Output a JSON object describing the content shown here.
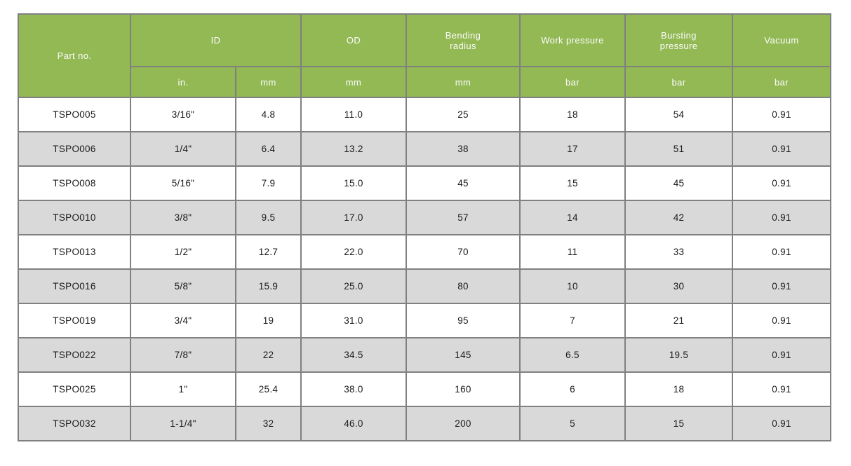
{
  "table": {
    "title": "hose-specification-table",
    "header": {
      "part_no": "Part no.",
      "id": "ID",
      "od": "OD",
      "bending_radius": "Bending\nradius",
      "work_pressure": "Work pressure",
      "bursting_pressure": "Bursting\npressure",
      "vacuum": "Vacuum",
      "units": {
        "id_in": "in.",
        "id_mm": "mm",
        "od_mm": "mm",
        "bending_mm": "mm",
        "work_bar": "bar",
        "bursting_bar": "bar",
        "vacuum_bar": "bar"
      }
    },
    "row_keys": [
      "part_no",
      "id_in",
      "id_mm",
      "od_mm",
      "bending_radius_mm",
      "work_pressure_bar",
      "bursting_pressure_bar",
      "vacuum_bar"
    ],
    "rows": [
      {
        "part_no": "TSPO005",
        "id_in": "3/16\"",
        "id_mm": "4.8",
        "od_mm": "11.0",
        "bending_radius_mm": "25",
        "work_pressure_bar": "18",
        "bursting_pressure_bar": "54",
        "vacuum_bar": "0.91"
      },
      {
        "part_no": "TSPO006",
        "id_in": "1/4\"",
        "id_mm": "6.4",
        "od_mm": "13.2",
        "bending_radius_mm": "38",
        "work_pressure_bar": "17",
        "bursting_pressure_bar": "51",
        "vacuum_bar": "0.91"
      },
      {
        "part_no": "TSPO008",
        "id_in": "5/16\"",
        "id_mm": "7.9",
        "od_mm": "15.0",
        "bending_radius_mm": "45",
        "work_pressure_bar": "15",
        "bursting_pressure_bar": "45",
        "vacuum_bar": "0.91"
      },
      {
        "part_no": "TSPO010",
        "id_in": "3/8\"",
        "id_mm": "9.5",
        "od_mm": "17.0",
        "bending_radius_mm": "57",
        "work_pressure_bar": "14",
        "bursting_pressure_bar": "42",
        "vacuum_bar": "0.91"
      },
      {
        "part_no": "TSPO013",
        "id_in": "1/2\"",
        "id_mm": "12.7",
        "od_mm": "22.0",
        "bending_radius_mm": "70",
        "work_pressure_bar": "11",
        "bursting_pressure_bar": "33",
        "vacuum_bar": "0.91"
      },
      {
        "part_no": "TSPO016",
        "id_in": "5/8\"",
        "id_mm": "15.9",
        "od_mm": "25.0",
        "bending_radius_mm": "80",
        "work_pressure_bar": "10",
        "bursting_pressure_bar": "30",
        "vacuum_bar": "0.91"
      },
      {
        "part_no": "TSPO019",
        "id_in": "3/4\"",
        "id_mm": "19",
        "od_mm": "31.0",
        "bending_radius_mm": "95",
        "work_pressure_bar": "7",
        "bursting_pressure_bar": "21",
        "vacuum_bar": "0.91"
      },
      {
        "part_no": "TSPO022",
        "id_in": "7/8\"",
        "id_mm": "22",
        "od_mm": "34.5",
        "bending_radius_mm": "145",
        "work_pressure_bar": "6.5",
        "bursting_pressure_bar": "19.5",
        "vacuum_bar": "0.91"
      },
      {
        "part_no": "TSPO025",
        "id_in": "1\"",
        "id_mm": "25.4",
        "od_mm": "38.0",
        "bending_radius_mm": "160",
        "work_pressure_bar": "6",
        "bursting_pressure_bar": "18",
        "vacuum_bar": "0.91"
      },
      {
        "part_no": "TSPO032",
        "id_in": "1-1/4\"",
        "id_mm": "32",
        "od_mm": "46.0",
        "bending_radius_mm": "200",
        "work_pressure_bar": "5",
        "bursting_pressure_bar": "15",
        "vacuum_bar": "0.91"
      }
    ],
    "colors": {
      "header_bg": "#93b955",
      "header_text": "#fcfcfc",
      "row_alt_bg": "#d9d9d9",
      "border": "#808080",
      "text": "#1a1a1a"
    }
  }
}
